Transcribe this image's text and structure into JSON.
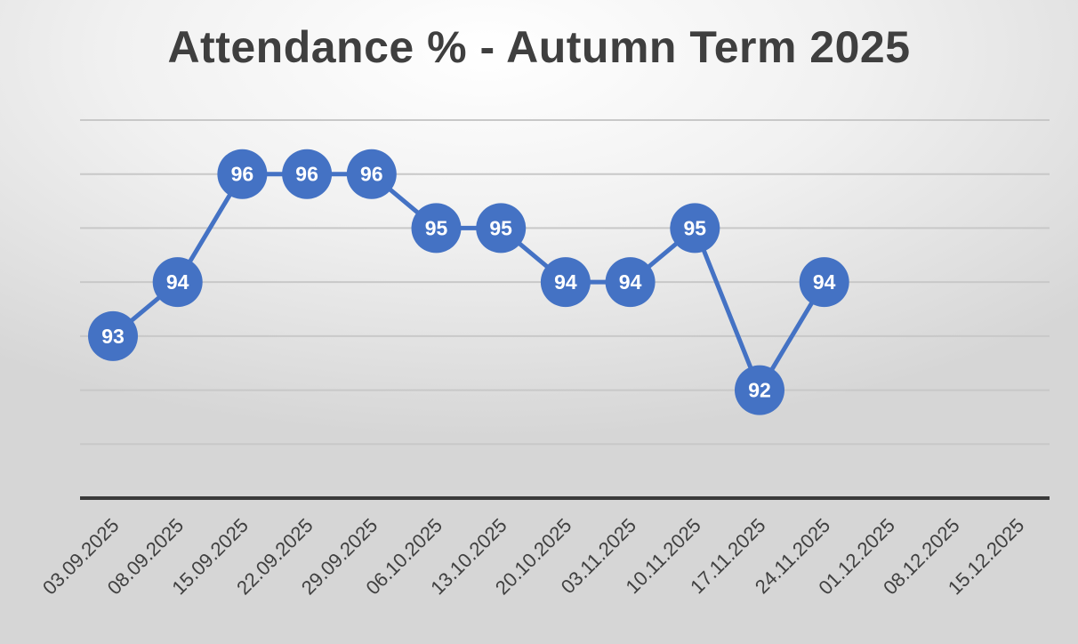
{
  "chart_data": {
    "type": "line",
    "title": "Attendance % - Autumn Term 2025",
    "xlabel": "",
    "ylabel": "",
    "categories": [
      "03.09.2025",
      "08.09.2025",
      "15.09.2025",
      "22.09.2025",
      "29.09.2025",
      "06.10.2025",
      "13.10.2025",
      "20.10.2025",
      "03.11.2025",
      "10.11.2025",
      "17.11.2025",
      "24.11.2025",
      "01.12.2025",
      "08.12.2025",
      "15.12.2025"
    ],
    "series": [
      {
        "values": [
          93,
          94,
          96,
          96,
          96,
          95,
          95,
          94,
          94,
          95,
          92,
          94,
          null,
          null,
          null
        ]
      }
    ],
    "ylim": [
      90,
      97
    ],
    "grid": true,
    "data_labels": true,
    "y_tick_labels_shown": false,
    "legend": "none",
    "colors": {
      "series": "#4472c4",
      "marker_text": "#ffffff",
      "gridline": "#c8c8c8",
      "baseline": "#3a3a3a",
      "title": "#3f3f3f",
      "tick_text": "#404040"
    }
  }
}
